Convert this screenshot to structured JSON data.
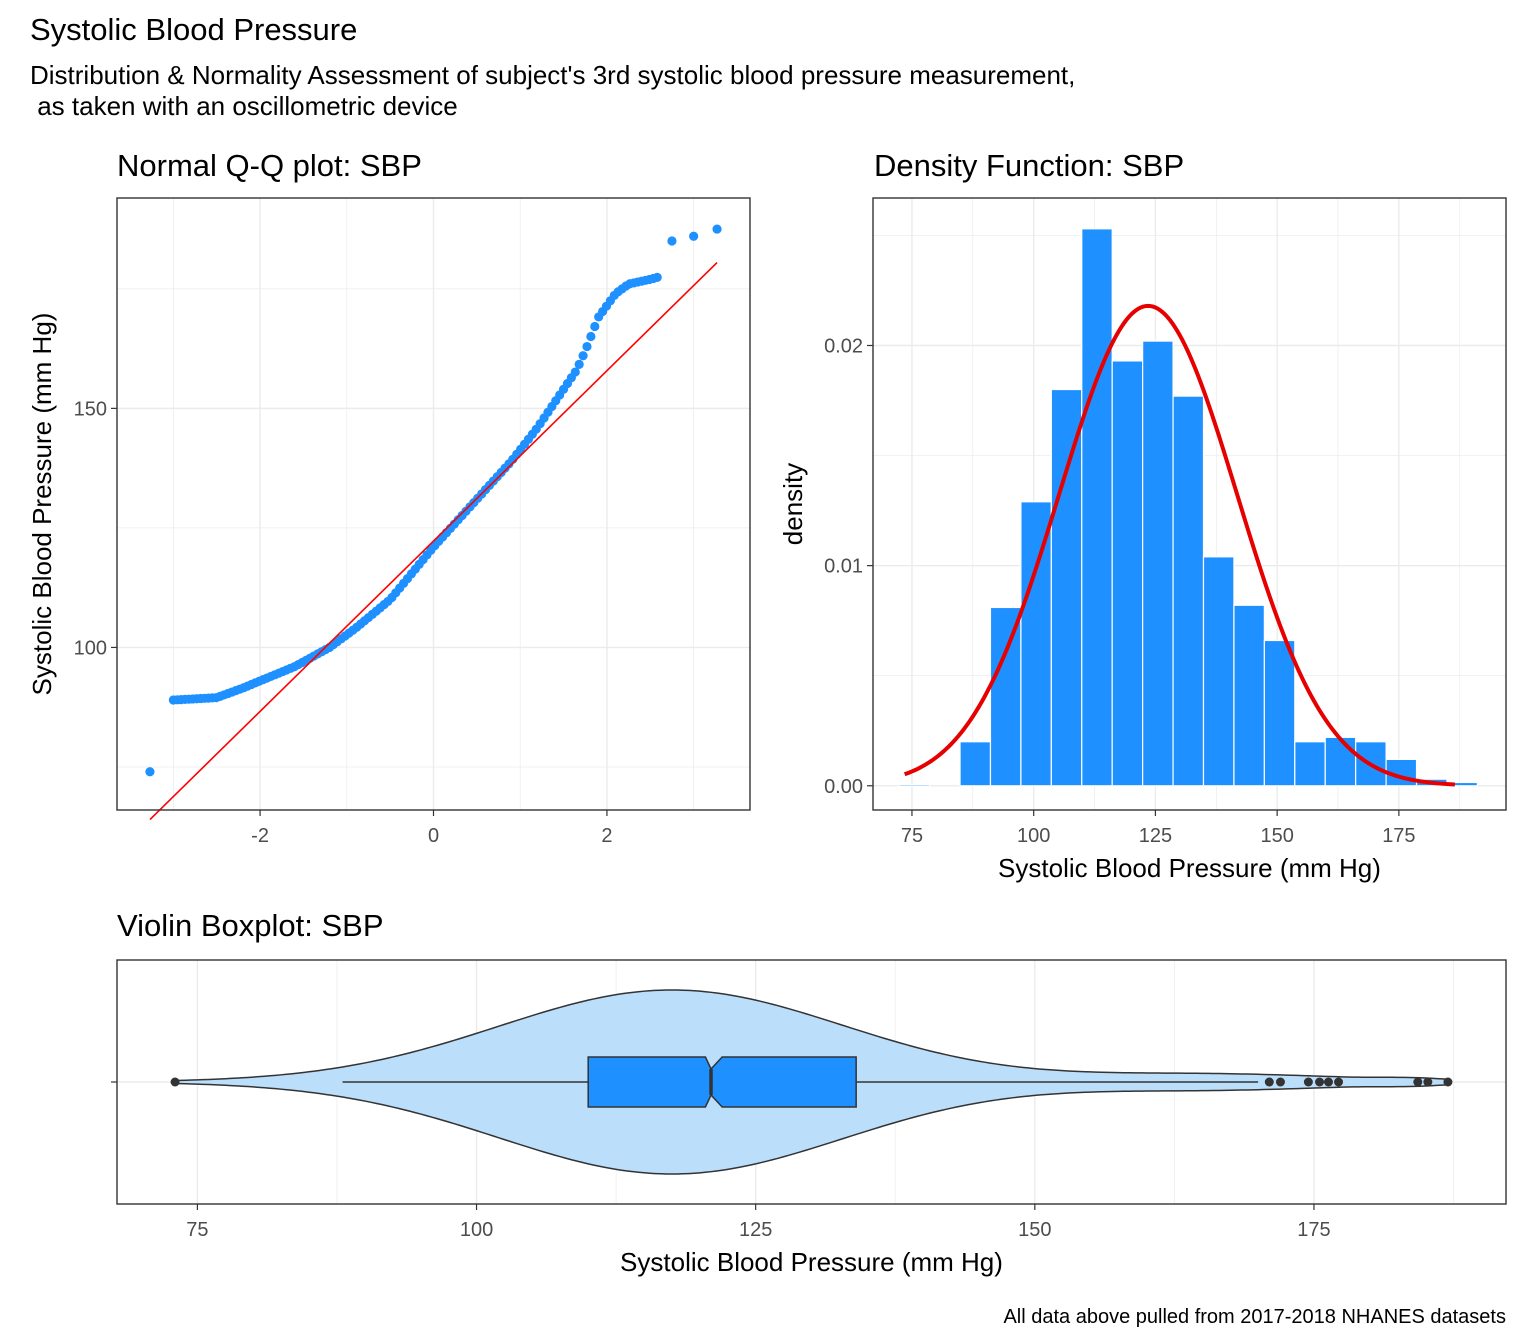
{
  "title": "Systolic Blood Pressure",
  "subtitle_lines": [
    "Distribution & Normality Assessment of subject's 3rd systolic blood pressure measurement,",
    " as taken with an oscillometric device"
  ],
  "caption": "All data above pulled from 2017-2018 NHANES datasets",
  "colors": {
    "points": "#1e90ff",
    "bars": "#1e90ff",
    "reference_line": "#ff0000",
    "density_curve": "#e60000",
    "violin_fill": "#bbdefb",
    "box_fill": "#1e90ff",
    "outline": "#333333",
    "grid": "#ebebeb"
  },
  "chart_data": [
    {
      "type": "scatter",
      "subtype": "qq-plot",
      "title": "Normal Q-Q plot: SBP",
      "xlabel": "",
      "ylabel": "Systolic Blood Pressure (mm Hg)",
      "xlim": [
        -3.65,
        3.65
      ],
      "ylim": [
        66,
        194
      ],
      "x_ticks": [
        -2,
        0,
        2
      ],
      "y_ticks": [
        100,
        150
      ],
      "grid": true,
      "reference_line": {
        "x": [
          -3.27,
          3.27
        ],
        "y": [
          64,
          180.5
        ]
      },
      "point_anchors": [
        [
          -3.27,
          74
        ],
        [
          -3.0,
          89
        ],
        [
          -2.5,
          89.5
        ],
        [
          -2.2,
          91.5
        ],
        [
          -2.0,
          93
        ],
        [
          -1.6,
          96
        ],
        [
          -1.2,
          100
        ],
        [
          -0.9,
          104
        ],
        [
          -0.5,
          110
        ],
        [
          0,
          121
        ],
        [
          0.3,
          127
        ],
        [
          0.6,
          133
        ],
        [
          0.9,
          139
        ],
        [
          1.2,
          146
        ],
        [
          1.5,
          154
        ],
        [
          1.65,
          158
        ],
        [
          1.75,
          162
        ],
        [
          1.9,
          169
        ],
        [
          2.1,
          174
        ],
        [
          2.25,
          176
        ],
        [
          2.5,
          177
        ],
        [
          2.6,
          177.5
        ],
        [
          2.75,
          185
        ],
        [
          3.0,
          186
        ],
        [
          3.27,
          187.5
        ]
      ]
    },
    {
      "type": "bar",
      "subtype": "histogram-with-normal-density",
      "title": "Density Function: SBP",
      "xlabel": "Systolic Blood Pressure (mm Hg)",
      "ylabel": "density",
      "xlim": [
        67,
        197
      ],
      "ylim": [
        -0.0011,
        0.0267
      ],
      "x_ticks": [
        75,
        100,
        125,
        150,
        175
      ],
      "y_ticks": [
        0.0,
        0.01,
        0.02
      ],
      "y_tick_labels": [
        "0.00",
        "0.01",
        "0.02"
      ],
      "grid": true,
      "bin_width": 6.25,
      "bin_centers": [
        75.5,
        81.75,
        88,
        94.25,
        100.5,
        106.75,
        113,
        119.25,
        125.5,
        131.75,
        138,
        144.25,
        150.5,
        156.75,
        163,
        169.25,
        175.5,
        181.75,
        188
      ],
      "values": [
        5e-05,
        0,
        0.002,
        0.0081,
        0.0129,
        0.018,
        0.0253,
        0.0193,
        0.0202,
        0.0177,
        0.0104,
        0.0082,
        0.0066,
        0.002,
        0.0022,
        0.002,
        0.0012,
        0.0003,
        0.00015
      ],
      "normal_curve": {
        "mean": 123.5,
        "sd": 18.3,
        "x_range": [
          73.5,
          186.5
        ]
      }
    },
    {
      "type": "violin-boxplot",
      "title": "Violin Boxplot: SBP",
      "xlabel": "Systolic Blood Pressure (mm Hg)",
      "ylabel": "",
      "xlim": [
        67.8,
        192.2
      ],
      "x_ticks": [
        75,
        100,
        125,
        150,
        175
      ],
      "grid": true,
      "violin_range": [
        73,
        187
      ],
      "violin_mode": 117.5,
      "box": {
        "q1": 110,
        "median": 121,
        "q3": 134,
        "notch_low": 120.5,
        "notch_high": 122,
        "whisker_low": 88,
        "whisker_high": 170
      },
      "outliers": [
        73,
        171,
        172,
        174.5,
        175.5,
        176.3,
        177.2,
        184.3,
        185.2,
        187
      ]
    }
  ]
}
